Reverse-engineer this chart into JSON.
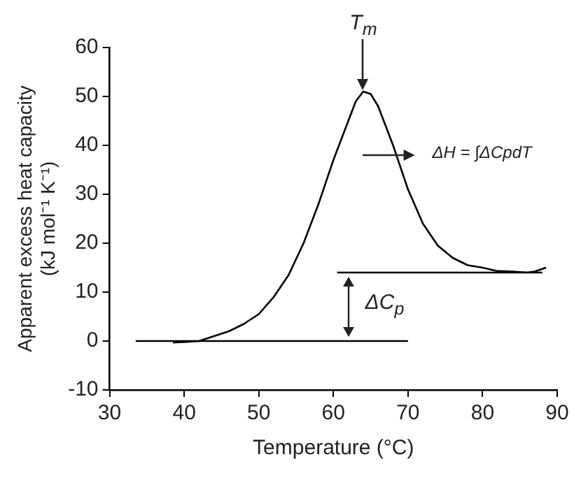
{
  "chart_data": {
    "type": "line",
    "xlabel": "Temperature (°C)",
    "ylabel": "Apparent excess heat capacity\n(kJ mol⁻¹ K⁻¹)",
    "xlim": [
      30,
      90
    ],
    "xticks": [
      30,
      40,
      50,
      60,
      70,
      80,
      90
    ],
    "ylim": [
      -10,
      60
    ],
    "yticks": [
      -10,
      0,
      10,
      20,
      30,
      40,
      50,
      60
    ],
    "grid": false,
    "legend": false,
    "marker": "none",
    "line_style": "solid",
    "series": [
      {
        "color": "#000000",
        "x": [
          38.5,
          40,
          42,
          44,
          46,
          48,
          50,
          52,
          54,
          56,
          58,
          60,
          62,
          63,
          64,
          65,
          66,
          68,
          70,
          72,
          74,
          76,
          78,
          80,
          82,
          84,
          86,
          87,
          88.5
        ],
        "values": [
          -0.3,
          -0.2,
          0,
          1,
          2,
          3.5,
          5.5,
          9,
          13.5,
          20,
          28,
          37,
          45,
          49,
          51,
          50.5,
          48,
          40,
          31,
          24,
          19.5,
          17,
          15.5,
          15,
          14.3,
          14.2,
          14,
          14.2,
          15
        ]
      },
      {
        "color": "#000000",
        "x": [
          33.5,
          70
        ],
        "values": [
          0,
          0
        ]
      },
      {
        "color": "#000000",
        "x": [
          60.5,
          88
        ],
        "values": [
          14,
          14
        ]
      }
    ],
    "annotations": [
      {
        "text": "T$_{m}$",
        "x": 64,
        "y": 51
      },
      "ΔH = ∫ΔCpdT",
      "ΔC$_{p}$"
    ]
  }
}
